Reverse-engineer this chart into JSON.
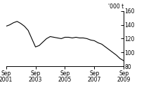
{
  "title": "",
  "ylabel": "'000 t",
  "ylim": [
    80,
    160
  ],
  "yticks": [
    80,
    100,
    120,
    140,
    160
  ],
  "xtick_labels": [
    "Sep\n2001",
    "Sep\n2003",
    "Sep\n2005",
    "Sep\n2007",
    "Sep\n2009"
  ],
  "xtick_positions": [
    0,
    24,
    48,
    72,
    96
  ],
  "line_color": "#000000",
  "background_color": "#ffffff",
  "x": [
    0,
    3,
    6,
    9,
    12,
    15,
    18,
    21,
    24,
    27,
    30,
    33,
    36,
    39,
    42,
    45,
    48,
    51,
    54,
    57,
    60,
    63,
    66,
    69,
    72,
    75,
    78,
    81,
    84,
    87,
    90,
    93,
    96
  ],
  "y": [
    138,
    140,
    143,
    145,
    142,
    138,
    132,
    120,
    108,
    110,
    115,
    120,
    123,
    122,
    121,
    120,
    122,
    122,
    121,
    122,
    121,
    121,
    120,
    118,
    117,
    114,
    112,
    108,
    104,
    100,
    96,
    91,
    88
  ]
}
